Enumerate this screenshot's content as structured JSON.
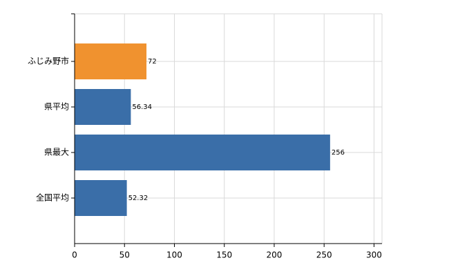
{
  "chart_data": {
    "type": "bar",
    "orientation": "horizontal",
    "categories": [
      "ふじみ野市",
      "県平均",
      "県最大",
      "全国平均"
    ],
    "values": [
      72,
      56.34,
      256,
      52.32
    ],
    "colors": [
      "#f0922f",
      "#3a6ea8",
      "#3a6ea8",
      "#3a6ea8"
    ],
    "xlim": [
      0,
      308
    ],
    "xticks": [
      0,
      50,
      100,
      150,
      200,
      250,
      300
    ],
    "grid": true
  }
}
